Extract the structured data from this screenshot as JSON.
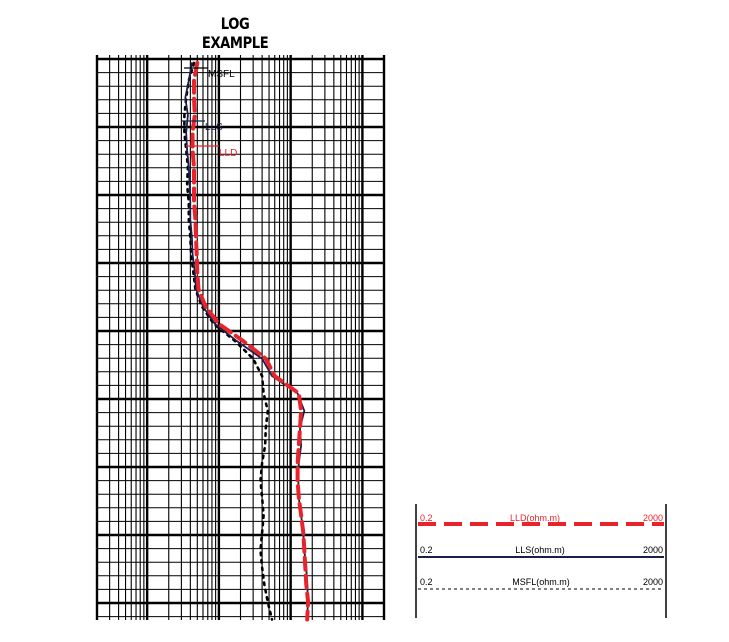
{
  "title": "LOG EXAMPLE",
  "chart_data": {
    "type": "line",
    "title": "LOG EXAMPLE",
    "x_scale": "log",
    "xlim": [
      0.2,
      2000
    ],
    "depth_samples": 33,
    "series": [
      {
        "name": "LLD",
        "unit": "ohm.m",
        "color": "#e8232a",
        "style": "dashed",
        "values": [
          5,
          4.5,
          4.5,
          4.6,
          4.3,
          4.3,
          4.5,
          4.5,
          4.5,
          4.7,
          4.8,
          4.9,
          5,
          5.2,
          6.5,
          10,
          22,
          45,
          60,
          130,
          140,
          135,
          130,
          125,
          125,
          130,
          140,
          150,
          155,
          160,
          165,
          175,
          170
        ]
      },
      {
        "name": "LLS",
        "unit": "ohm.m",
        "color": "#1a1f4a",
        "style": "solid",
        "values": [
          4.2,
          3.8,
          3.4,
          3.7,
          3.5,
          3.6,
          3.8,
          3.9,
          4,
          4,
          4.2,
          4.3,
          4.6,
          4.8,
          6,
          8.8,
          18,
          40,
          55,
          125,
          155,
          135,
          140,
          130,
          128,
          130,
          140,
          150,
          155,
          165,
          170,
          175,
          168
        ]
      },
      {
        "name": "MSFL",
        "unit": "ohm.m",
        "color": "#000000",
        "style": "dotted",
        "values": [
          4.5,
          3.8,
          3.5,
          3.3,
          3.3,
          3.5,
          3.7,
          3.6,
          3.8,
          3.8,
          4,
          4.1,
          4.4,
          4.7,
          5.8,
          8.5,
          17,
          30,
          40,
          42,
          48,
          45,
          44,
          40,
          38,
          40,
          42,
          40,
          38,
          40,
          43,
          48,
          55
        ]
      }
    ],
    "curve_labels": [
      "MSFL",
      "LLS",
      "LLD"
    ]
  },
  "legend": {
    "rows": [
      {
        "min": "0.2",
        "label": "LLD(ohm.m)",
        "max": "2000",
        "color": "#e8232a"
      },
      {
        "min": "0.2",
        "label": "LLS(ohm.m)",
        "max": "2000",
        "color": "#1a1f4a"
      },
      {
        "min": "0.2",
        "label": "MSFL(ohm.m)",
        "max": "2000",
        "color": "#000000"
      }
    ]
  }
}
